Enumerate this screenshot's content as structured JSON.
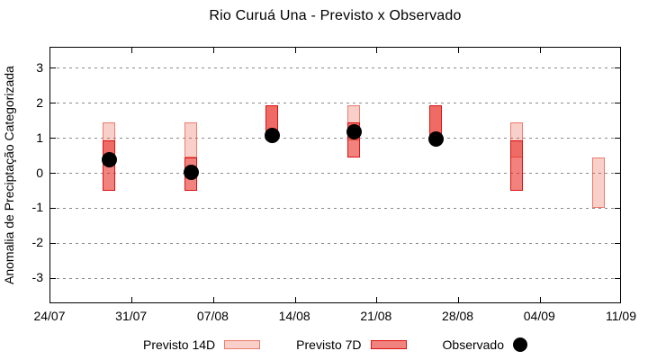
{
  "chart_data": {
    "type": "bar",
    "title": "Rio Curuá Una - Previsto x Observado",
    "xlabel": "",
    "ylabel": "Anomalia de Preciptação Categorizada",
    "grid": true,
    "legend_position": "bottom",
    "ylim": [
      -3.74,
      3.59
    ],
    "xlim_days": [
      0,
      49
    ],
    "bar_width_days": 1.1,
    "x_ticks": [
      {
        "label": "24/07",
        "day": 0
      },
      {
        "label": "31/07",
        "day": 7
      },
      {
        "label": "07/08",
        "day": 14
      },
      {
        "label": "14/08",
        "day": 21
      },
      {
        "label": "21/08",
        "day": 28
      },
      {
        "label": "28/08",
        "day": 35
      },
      {
        "label": "04/09",
        "day": 42
      },
      {
        "label": "11/09",
        "day": 49
      }
    ],
    "y_ticks": [
      3,
      2,
      1,
      0,
      -1,
      -2,
      -3
    ],
    "series": [
      {
        "name": "Previsto 14D",
        "type": "range-bar",
        "fill": "rgba(232,76,56,0.27)",
        "border": "rgba(228,80,60,0.65)",
        "points": [
          {
            "date": "29/07",
            "day": 5,
            "low": 0.45,
            "high": 1.45
          },
          {
            "date": "05/08",
            "day": 12,
            "low": 0.45,
            "high": 1.45
          },
          {
            "date": "12/08",
            "day": 19,
            "low": 0.95,
            "high": 1.95
          },
          {
            "date": "19/08",
            "day": 26,
            "low": 0.95,
            "high": 1.95
          },
          {
            "date": "26/08",
            "day": 33,
            "low": 0.95,
            "high": 1.95
          },
          {
            "date": "02/09",
            "day": 40,
            "low": 0.45,
            "high": 1.45
          },
          {
            "date": "09/09",
            "day": 47,
            "low": -1.0,
            "high": 0.45
          }
        ]
      },
      {
        "name": "Previsto 7D",
        "type": "range-bar",
        "fill": "rgba(229,28,18,0.55)",
        "border": "#dd1111",
        "points": [
          {
            "date": "29/07",
            "day": 5,
            "low": -0.5,
            "high": 0.95
          },
          {
            "date": "05/08",
            "day": 12,
            "low": -0.5,
            "high": 0.45
          },
          {
            "date": "12/08",
            "day": 19,
            "low": 1.1,
            "high": 1.95
          },
          {
            "date": "19/08",
            "day": 26,
            "low": 0.45,
            "high": 1.45
          },
          {
            "date": "26/08",
            "day": 33,
            "low": 0.95,
            "high": 1.95
          },
          {
            "date": "02/09",
            "day": 40,
            "low": -0.5,
            "high": 0.95
          }
        ]
      },
      {
        "name": "Observado",
        "type": "scatter",
        "color": "#000000",
        "points": [
          {
            "date": "29/07",
            "day": 5,
            "value": 0.4
          },
          {
            "date": "05/08",
            "day": 12,
            "value": 0.05
          },
          {
            "date": "12/08",
            "day": 19,
            "value": 1.1
          },
          {
            "date": "19/08",
            "day": 26,
            "value": 1.2
          },
          {
            "date": "26/08",
            "day": 33,
            "value": 1.0
          }
        ]
      }
    ]
  }
}
